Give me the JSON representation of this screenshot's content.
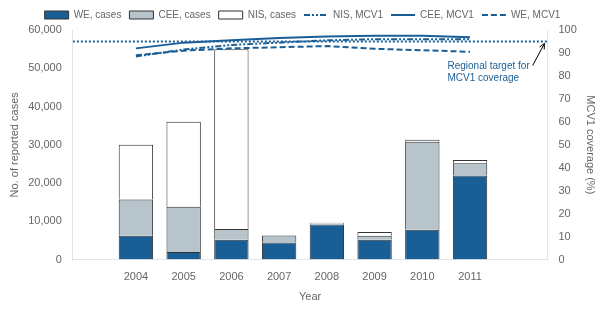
{
  "chart_data": {
    "type": "bar",
    "x": [
      2004,
      2005,
      2006,
      2007,
      2008,
      2009,
      2010,
      2011
    ],
    "xlabel": "Year",
    "ylabel": "No. of reported cases",
    "y2label": "MCV1 coverage (%)",
    "xlim": [
      2003.3,
      2012.0
    ],
    "xticks": [
      2004,
      2005,
      2006,
      2007,
      2008,
      2009,
      2010,
      2011
    ],
    "ylim": [
      0,
      60000
    ],
    "yticks": [
      0,
      {
        "value": 10000,
        "label": "10,000"
      },
      {
        "value": 20000,
        "label": "20,000"
      },
      {
        "value": 30000,
        "label": "30,000"
      },
      {
        "value": 40000,
        "label": "40,000"
      },
      {
        "value": 50000,
        "label": "50,000"
      },
      {
        "value": 60000,
        "label": "60,000"
      }
    ],
    "y2lim": [
      0,
      100
    ],
    "y2ticks": [
      0,
      10,
      20,
      30,
      40,
      50,
      60,
      70,
      80,
      90,
      100
    ],
    "stacked": true,
    "grid": false,
    "legend": "top",
    "series": [
      {
        "name": "WE, cases",
        "color": "#1a5e96",
        "values": [
          6200,
          2000,
          5200,
          4500,
          9200,
          5200,
          7800,
          22000
        ]
      },
      {
        "name": "CEE, cases",
        "color": "#b8c4cc",
        "values": [
          9500,
          11800,
          2800,
          1800,
          200,
          1000,
          23000,
          3200
        ]
      },
      {
        "name": "NIS, cases",
        "color": "#FFFFFF",
        "values": [
          14300,
          22200,
          47000,
          0,
          200,
          1000,
          500,
          800
        ]
      },
      {
        "name": "NIS, MCV1",
        "type": "line",
        "axis": "y2",
        "color": "#1a5e96",
        "line_style": "dashdotdot",
        "values": [
          88.5,
          91.5,
          93.5,
          94.5,
          95.5,
          96.0,
          96.0,
          96.0
        ]
      },
      {
        "name": "CEE, MCV1",
        "type": "line",
        "axis": "y2",
        "color": "#1a5e96",
        "line_style": "solid",
        "values": [
          92.0,
          94.5,
          95.5,
          96.5,
          97.2,
          97.5,
          97.5,
          96.8
        ]
      },
      {
        "name": "WE, MCV1",
        "type": "line",
        "axis": "y2",
        "color": "#1a5e96",
        "line_style": "dashed",
        "values": [
          89.0,
          91.0,
          92.0,
          92.5,
          93.0,
          91.8,
          91.2,
          90.5
        ]
      }
    ],
    "reference_lines": [
      {
        "value": 95,
        "axis": "y2",
        "color": "#1a5e96",
        "line_style": "dotted",
        "label": "Regional target for\nMCV1 coverage"
      }
    ]
  }
}
